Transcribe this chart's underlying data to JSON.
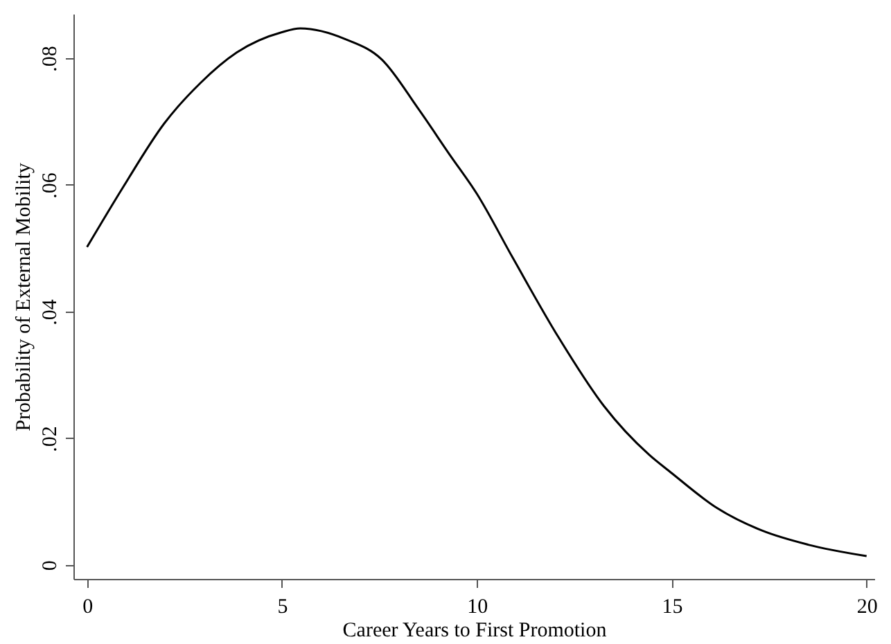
{
  "chart_data": {
    "type": "line",
    "xlabel": "Career Years to First Promotion",
    "ylabel": "Probability of External Mobility",
    "x": [
      0,
      0.93,
      1.98,
      2.91,
      3.84,
      5,
      5.47,
      6.63,
      7.56,
      8.5,
      9.3,
      10,
      10.93,
      12.09,
      13.26,
      14.42,
      15,
      16.16,
      17.33,
      18.5,
      20
    ],
    "series": [
      {
        "color": "#000000",
        "values": [
          0.0502,
          0.0597,
          0.0697,
          0.0761,
          0.0809,
          0.0841,
          0.0847,
          0.083,
          0.0798,
          0.072,
          0.0648,
          0.0586,
          0.0484,
          0.036,
          0.0251,
          0.0174,
          0.0145,
          0.009,
          0.0054,
          0.0032,
          0.0014
        ]
      }
    ],
    "xlim": [
      -0.35,
      20.2
    ],
    "ylim": [
      -0.0022,
      0.087
    ],
    "xticks": [
      0,
      5,
      10,
      15,
      20
    ],
    "yticks": [
      {
        "value": 0,
        "label": "0"
      },
      {
        "value": 0.02,
        "label": ".02"
      },
      {
        "value": 0.04,
        "label": ".04"
      },
      {
        "value": 0.06,
        "label": ".06"
      },
      {
        "value": 0.08,
        "label": ".08"
      }
    ],
    "grid": false,
    "marker": "none",
    "line_style": "solid"
  }
}
